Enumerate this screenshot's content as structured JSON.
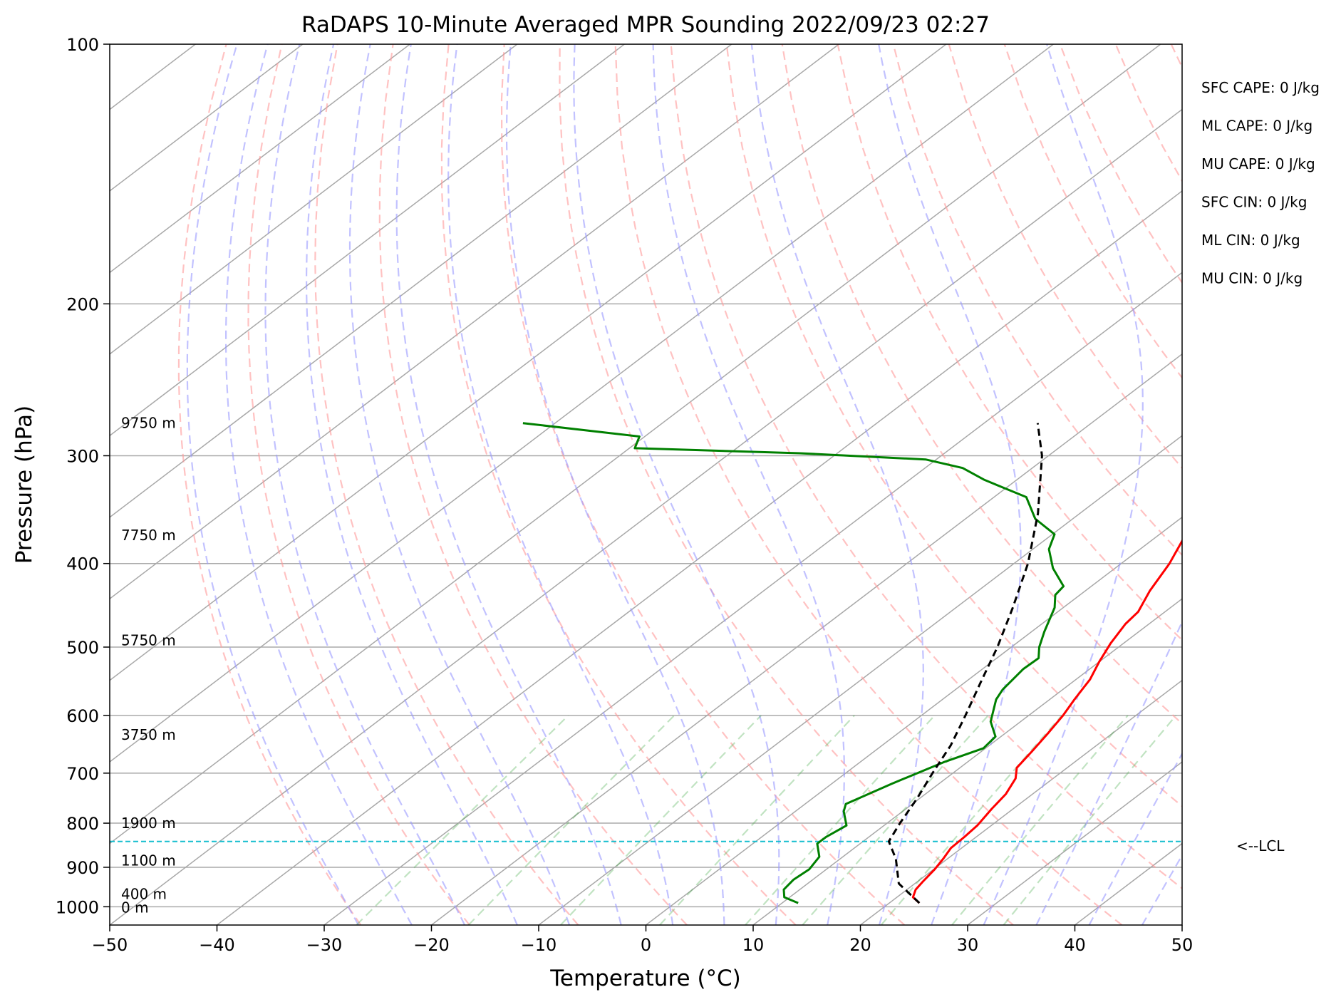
{
  "chart_data": {
    "type": "line",
    "subtype": "skew-t log-p sounding",
    "title": "RaDAPS 10-Minute Averaged MPR Sounding 2022/09/23 02:27",
    "xlabel": "Temperature (°C)",
    "ylabel": "Pressure (hPa)",
    "xlim": [
      -50,
      50
    ],
    "ylim": [
      1050,
      100
    ],
    "yscale": "log",
    "grid": true,
    "x_ticks": [
      "−50",
      "−40",
      "−30",
      "−20",
      "−10",
      "0",
      "10",
      "20",
      "30",
      "40",
      "50"
    ],
    "x_tick_values": [
      -50,
      -40,
      -30,
      -20,
      -10,
      0,
      10,
      20,
      30,
      40,
      50
    ],
    "y_ticks": [
      "100",
      "200",
      "300",
      "400",
      "500",
      "600",
      "700",
      "800",
      "900",
      "1000"
    ],
    "y_tick_values": [
      100,
      200,
      300,
      400,
      500,
      600,
      700,
      800,
      900,
      1000
    ],
    "height_labels": [
      {
        "text": "9750 m",
        "p": 275
      },
      {
        "text": "7750 m",
        "p": 371
      },
      {
        "text": "5750 m",
        "p": 491
      },
      {
        "text": "3750 m",
        "p": 632
      },
      {
        "text": "1900 m",
        "p": 800
      },
      {
        "text": "1100 m",
        "p": 884
      },
      {
        "text": "400 m",
        "p": 967
      },
      {
        "text": "0 m",
        "p": 1002
      }
    ],
    "indices": [
      "SFC CAPE: 0 J/kg",
      "ML CAPE: 0 J/kg",
      "MU CAPE: 0 J/kg",
      "SFC CIN: 0 J/kg",
      "ML CIN: 0 J/kg",
      "MU CIN: 0 J/kg"
    ],
    "lcl": {
      "label": "<--LCL",
      "p": 840,
      "color": "#17becf"
    },
    "series": [
      {
        "role": "temperature",
        "color": "#ff0000",
        "points": [
          {
            "p": 990,
            "t": 22.8
          },
          {
            "p": 975,
            "t": 21.5
          },
          {
            "p": 955,
            "t": 20.8
          },
          {
            "p": 935,
            "t": 20.5
          },
          {
            "p": 905,
            "t": 20.1
          },
          {
            "p": 880,
            "t": 19.6
          },
          {
            "p": 855,
            "t": 19.0
          },
          {
            "p": 830,
            "t": 18.9
          },
          {
            "p": 805,
            "t": 18.7
          },
          {
            "p": 770,
            "t": 18.0
          },
          {
            "p": 740,
            "t": 17.5
          },
          {
            "p": 710,
            "t": 16.5
          },
          {
            "p": 690,
            "t": 15.3
          },
          {
            "p": 660,
            "t": 14.7
          },
          {
            "p": 630,
            "t": 14.0
          },
          {
            "p": 600,
            "t": 13.2
          },
          {
            "p": 575,
            "t": 12.3
          },
          {
            "p": 545,
            "t": 11.3
          },
          {
            "p": 520,
            "t": 10.0
          },
          {
            "p": 495,
            "t": 8.8
          },
          {
            "p": 470,
            "t": 7.8
          },
          {
            "p": 455,
            "t": 7.5
          },
          {
            "p": 430,
            "t": 6.0
          },
          {
            "p": 400,
            "t": 4.5
          },
          {
            "p": 375,
            "t": 2.8
          },
          {
            "p": 350,
            "t": 0.7
          },
          {
            "p": 325,
            "t": -1.7
          },
          {
            "p": 300,
            "t": -4.3
          },
          {
            "p": 285,
            "t": -6.5
          },
          {
            "p": 275,
            "t": -8.2
          }
        ]
      },
      {
        "role": "dewpoint",
        "color": "#008000",
        "points": [
          {
            "p": 990,
            "t": 11.5
          },
          {
            "p": 975,
            "t": 9.5
          },
          {
            "p": 955,
            "t": 8.5
          },
          {
            "p": 930,
            "t": 8.2
          },
          {
            "p": 905,
            "t": 8.4
          },
          {
            "p": 875,
            "t": 7.8
          },
          {
            "p": 845,
            "t": 6.0
          },
          {
            "p": 830,
            "t": 6.0
          },
          {
            "p": 805,
            "t": 6.5
          },
          {
            "p": 775,
            "t": 4.5
          },
          {
            "p": 760,
            "t": 3.8
          },
          {
            "p": 720,
            "t": 5.6
          },
          {
            "p": 680,
            "t": 7.8
          },
          {
            "p": 655,
            "t": 9.8
          },
          {
            "p": 635,
            "t": 9.5
          },
          {
            "p": 610,
            "t": 7.2
          },
          {
            "p": 575,
            "t": 5.0
          },
          {
            "p": 560,
            "t": 4.4
          },
          {
            "p": 530,
            "t": 3.8
          },
          {
            "p": 515,
            "t": 3.9
          },
          {
            "p": 500,
            "t": 2.6
          },
          {
            "p": 480,
            "t": 1.2
          },
          {
            "p": 450,
            "t": -0.8
          },
          {
            "p": 435,
            "t": -2.3
          },
          {
            "p": 425,
            "t": -2.6
          },
          {
            "p": 405,
            "t": -5.8
          },
          {
            "p": 385,
            "t": -8.5
          },
          {
            "p": 370,
            "t": -9.8
          },
          {
            "p": 355,
            "t": -13.5
          },
          {
            "p": 335,
            "t": -17.0
          },
          {
            "p": 320,
            "t": -23.0
          },
          {
            "p": 310,
            "t": -26.5
          },
          {
            "p": 303,
            "t": -31.0
          },
          {
            "p": 298,
            "t": -43.5
          },
          {
            "p": 294,
            "t": -59.5
          },
          {
            "p": 285,
            "t": -60.5
          },
          {
            "p": 275,
            "t": -73.0
          }
        ]
      },
      {
        "role": "parcel",
        "color": "#000000",
        "dashed": true,
        "points": [
          {
            "p": 990,
            "t": 22.8
          },
          {
            "p": 940,
            "t": 18.5
          },
          {
            "p": 880,
            "t": 15.2
          },
          {
            "p": 840,
            "t": 12.4
          },
          {
            "p": 800,
            "t": 11.2
          },
          {
            "p": 750,
            "t": 9.8
          },
          {
            "p": 700,
            "t": 8.1
          },
          {
            "p": 650,
            "t": 6.4
          },
          {
            "p": 600,
            "t": 4.1
          },
          {
            "p": 550,
            "t": 1.5
          },
          {
            "p": 500,
            "t": -1.3
          },
          {
            "p": 450,
            "t": -4.7
          },
          {
            "p": 400,
            "t": -8.7
          },
          {
            "p": 350,
            "t": -13.9
          },
          {
            "p": 300,
            "t": -20.6
          },
          {
            "p": 275,
            "t": -25.0
          }
        ]
      }
    ]
  }
}
